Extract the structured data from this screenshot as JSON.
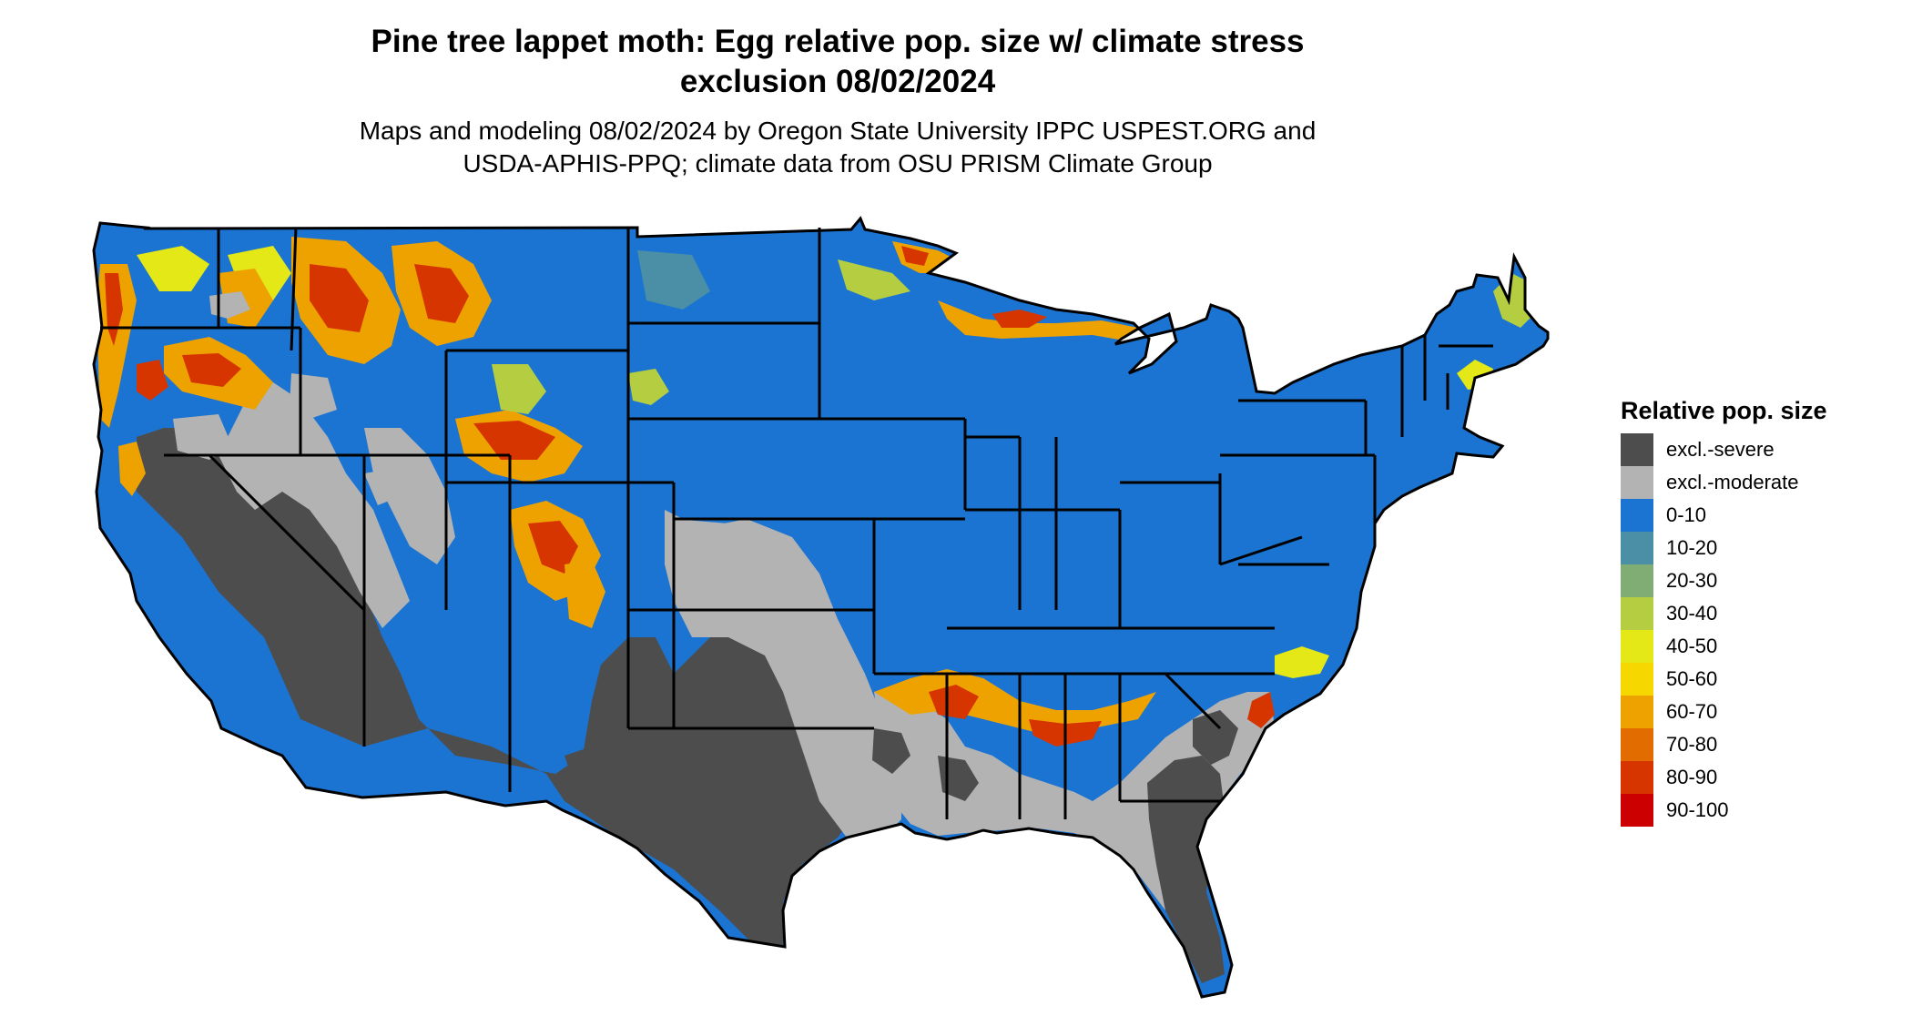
{
  "title": {
    "line1": "Pine tree lappet moth: Egg relative pop. size w/ climate stress",
    "line2": "exclusion 08/02/2024"
  },
  "subtitle": {
    "line1": "Maps and modeling 08/02/2024 by Oregon State University IPPC USPEST.ORG and",
    "line2": "USDA-APHIS-PPQ; climate data from OSU PRISM Climate Group"
  },
  "legend": {
    "title": "Relative pop. size",
    "items": [
      {
        "label": "excl.-severe",
        "color": "#4d4d4d"
      },
      {
        "label": "excl.-moderate",
        "color": "#b3b3b3"
      },
      {
        "label": "0-10",
        "color": "#1b74d1"
      },
      {
        "label": "10-20",
        "color": "#4a8fa6"
      },
      {
        "label": "20-30",
        "color": "#80ad74"
      },
      {
        "label": "30-40",
        "color": "#b5cd41"
      },
      {
        "label": "40-50",
        "color": "#e3e816"
      },
      {
        "label": "50-60",
        "color": "#f7d700"
      },
      {
        "label": "60-70",
        "color": "#eea200"
      },
      {
        "label": "70-80",
        "color": "#e26c00"
      },
      {
        "label": "80-90",
        "color": "#d63500"
      },
      {
        "label": "90-100",
        "color": "#cc0000"
      }
    ]
  },
  "map": {
    "region": "contiguous-united-states",
    "boundary_color": "#000000"
  }
}
